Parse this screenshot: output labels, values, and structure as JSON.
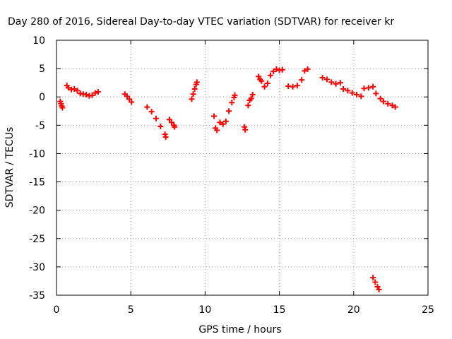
{
  "chart_data": {
    "type": "scatter",
    "title": "Day 280 of 2016, Sidereal Day-to-day VTEC variation (SDTVAR) for receiver kr",
    "xlabel": "GPS time / hours",
    "ylabel": "SDTVAR / TECUs",
    "xlim": [
      0,
      25
    ],
    "ylim": [
      -35,
      10
    ],
    "xticks": [
      0,
      5,
      10,
      15,
      20,
      25
    ],
    "yticks": [
      10,
      5,
      0,
      -5,
      -10,
      -15,
      -20,
      -25,
      -30,
      -35
    ],
    "grid": true,
    "marker": "+",
    "color": "#ff0000",
    "series": [
      {
        "points": [
          [
            0.25,
            -0.8
          ],
          [
            0.3,
            -1.2
          ],
          [
            0.35,
            -1.6
          ],
          [
            0.4,
            -1.9
          ],
          [
            0.7,
            2.0
          ],
          [
            0.8,
            1.6
          ],
          [
            1.0,
            1.3
          ],
          [
            1.2,
            1.4
          ],
          [
            1.4,
            1.1
          ],
          [
            1.6,
            0.6
          ],
          [
            1.8,
            0.5
          ],
          [
            2.0,
            0.4
          ],
          [
            2.2,
            0.2
          ],
          [
            2.4,
            0.3
          ],
          [
            2.6,
            0.7
          ],
          [
            2.8,
            0.9
          ],
          [
            4.6,
            0.5
          ],
          [
            4.75,
            0.1
          ],
          [
            4.9,
            -0.4
          ],
          [
            5.05,
            -0.9
          ],
          [
            6.1,
            -1.8
          ],
          [
            6.4,
            -2.6
          ],
          [
            6.7,
            -3.8
          ],
          [
            7.0,
            -5.2
          ],
          [
            7.3,
            -6.6
          ],
          [
            7.35,
            -7.1
          ],
          [
            7.6,
            -4.0
          ],
          [
            7.75,
            -4.5
          ],
          [
            7.9,
            -5.0
          ],
          [
            7.95,
            -5.3
          ],
          [
            9.1,
            -0.4
          ],
          [
            9.2,
            0.5
          ],
          [
            9.3,
            1.4
          ],
          [
            9.4,
            2.2
          ],
          [
            9.45,
            2.6
          ],
          [
            10.6,
            -3.4
          ],
          [
            10.7,
            -5.5
          ],
          [
            10.8,
            -5.9
          ],
          [
            11.0,
            -4.5
          ],
          [
            11.2,
            -4.8
          ],
          [
            11.4,
            -4.3
          ],
          [
            11.6,
            -2.5
          ],
          [
            11.8,
            -1.0
          ],
          [
            11.95,
            -0.1
          ],
          [
            12.0,
            0.3
          ],
          [
            12.65,
            -5.3
          ],
          [
            12.7,
            -5.8
          ],
          [
            12.9,
            -1.5
          ],
          [
            13.0,
            -0.6
          ],
          [
            13.1,
            -0.3
          ],
          [
            13.2,
            0.4
          ],
          [
            13.6,
            3.6
          ],
          [
            13.7,
            3.1
          ],
          [
            13.8,
            2.8
          ],
          [
            14.0,
            1.8
          ],
          [
            14.2,
            2.4
          ],
          [
            14.4,
            3.8
          ],
          [
            14.6,
            4.5
          ],
          [
            14.8,
            4.9
          ],
          [
            15.0,
            4.7
          ],
          [
            15.2,
            4.8
          ],
          [
            15.6,
            1.9
          ],
          [
            15.9,
            1.8
          ],
          [
            16.2,
            2.0
          ],
          [
            16.5,
            3.0
          ],
          [
            16.7,
            4.6
          ],
          [
            16.9,
            4.9
          ],
          [
            17.9,
            3.4
          ],
          [
            18.2,
            3.1
          ],
          [
            18.5,
            2.6
          ],
          [
            18.8,
            2.3
          ],
          [
            19.1,
            2.5
          ],
          [
            19.3,
            1.4
          ],
          [
            19.6,
            1.1
          ],
          [
            19.9,
            0.7
          ],
          [
            20.2,
            0.4
          ],
          [
            20.5,
            0.1
          ],
          [
            20.7,
            1.5
          ],
          [
            21.0,
            1.6
          ],
          [
            21.3,
            1.8
          ],
          [
            21.3,
            -31.9
          ],
          [
            21.45,
            -32.7
          ],
          [
            21.6,
            -33.5
          ],
          [
            21.7,
            -34.0
          ],
          [
            21.5,
            0.6
          ],
          [
            21.8,
            -0.3
          ],
          [
            22.0,
            -0.8
          ],
          [
            22.3,
            -1.2
          ],
          [
            22.6,
            -1.5
          ],
          [
            22.8,
            -1.8
          ]
        ]
      }
    ]
  }
}
